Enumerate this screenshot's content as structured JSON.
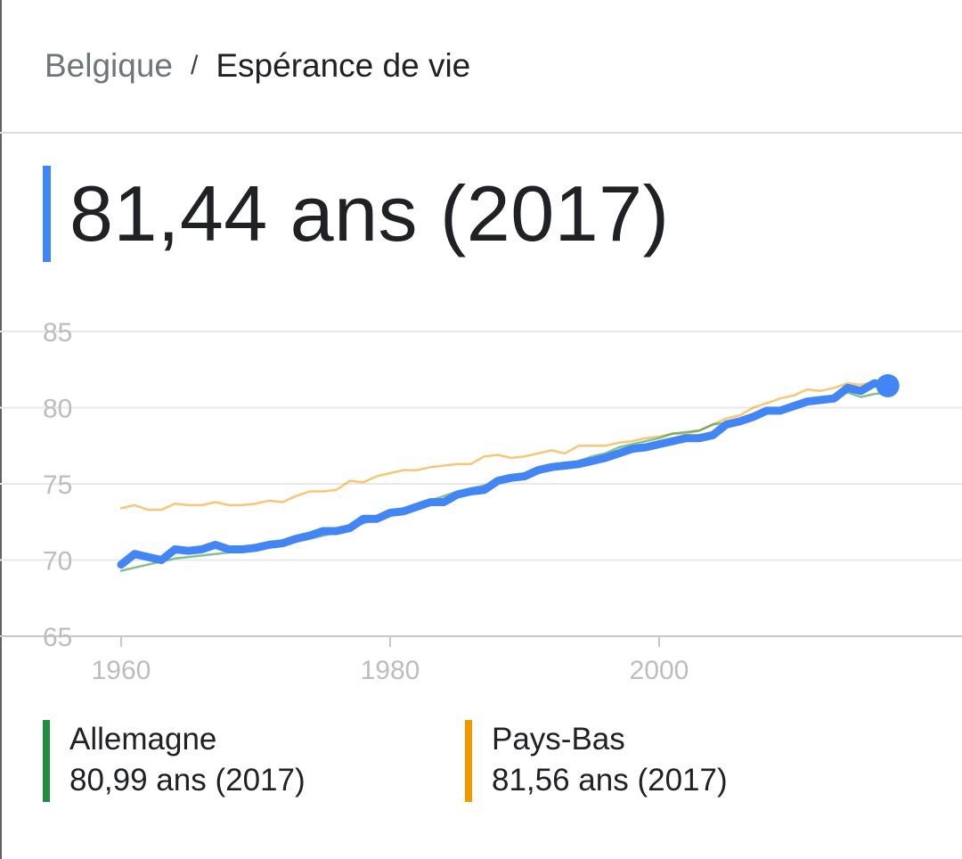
{
  "breadcrumb": {
    "country": "Belgique",
    "separator": "/",
    "indicator": "Espérance de vie"
  },
  "headline": {
    "value": "81,44 ans (2017)"
  },
  "legend": [
    {
      "name": "Allemagne",
      "value": "80,99 ans (2017)",
      "color": "#1e8e3e"
    },
    {
      "name": "Pays-Bas",
      "value": "81,56 ans (2017)",
      "color": "#f29900"
    }
  ],
  "chart_data": {
    "type": "line",
    "title": "",
    "xlabel": "",
    "ylabel": "",
    "xlim": [
      1960,
      2017
    ],
    "ylim": [
      65,
      85
    ],
    "x_ticks": [
      1960,
      1980,
      2000
    ],
    "y_ticks": [
      65,
      70,
      75,
      80,
      85
    ],
    "grid": true,
    "x": [
      1960,
      1961,
      1962,
      1963,
      1964,
      1965,
      1966,
      1967,
      1968,
      1969,
      1970,
      1971,
      1972,
      1973,
      1974,
      1975,
      1976,
      1977,
      1978,
      1979,
      1980,
      1981,
      1982,
      1983,
      1984,
      1985,
      1986,
      1987,
      1988,
      1989,
      1990,
      1991,
      1992,
      1993,
      1994,
      1995,
      1996,
      1997,
      1998,
      1999,
      2000,
      2001,
      2002,
      2003,
      2004,
      2005,
      2006,
      2007,
      2008,
      2009,
      2010,
      2011,
      2012,
      2013,
      2014,
      2015,
      2016,
      2017
    ],
    "series": [
      {
        "name": "Belgique",
        "color": "#4285f4",
        "values": [
          69.7,
          70.4,
          70.2,
          70.0,
          70.7,
          70.6,
          70.7,
          71.0,
          70.7,
          70.7,
          70.8,
          71.0,
          71.1,
          71.4,
          71.6,
          71.9,
          71.9,
          72.1,
          72.7,
          72.7,
          73.1,
          73.2,
          73.5,
          73.8,
          73.8,
          74.3,
          74.5,
          74.6,
          75.2,
          75.4,
          75.5,
          75.9,
          76.1,
          76.2,
          76.3,
          76.5,
          76.7,
          77.0,
          77.3,
          77.4,
          77.6,
          77.8,
          78.0,
          78.0,
          78.2,
          78.9,
          79.1,
          79.4,
          79.8,
          79.8,
          80.1,
          80.4,
          80.5,
          80.6,
          81.3,
          81.1,
          81.6,
          81.44
        ]
      },
      {
        "name": "Allemagne",
        "color": "#1e8e3e",
        "values": [
          69.3,
          69.5,
          69.7,
          69.9,
          70.1,
          70.2,
          70.3,
          70.4,
          70.5,
          70.6,
          70.7,
          70.8,
          71.0,
          71.2,
          71.4,
          71.6,
          71.8,
          72.1,
          72.4,
          72.7,
          73.0,
          73.3,
          73.6,
          73.9,
          74.2,
          74.5,
          74.7,
          74.9,
          75.1,
          75.3,
          75.4,
          75.8,
          75.9,
          76.2,
          76.5,
          76.8,
          77.0,
          77.4,
          77.6,
          77.8,
          78.0,
          78.3,
          78.4,
          78.5,
          78.9,
          79.0,
          79.3,
          79.6,
          79.9,
          80.0,
          80.2,
          80.5,
          80.6,
          80.6,
          81.0,
          80.7,
          80.9,
          80.99
        ]
      },
      {
        "name": "Pays-Bas",
        "color": "#f29900",
        "values": [
          73.4,
          73.6,
          73.3,
          73.3,
          73.7,
          73.6,
          73.6,
          73.8,
          73.6,
          73.6,
          73.7,
          73.9,
          73.8,
          74.2,
          74.5,
          74.5,
          74.6,
          75.2,
          75.1,
          75.5,
          75.7,
          75.9,
          75.9,
          76.1,
          76.2,
          76.3,
          76.3,
          76.8,
          76.9,
          76.7,
          76.8,
          77.0,
          77.2,
          77.0,
          77.5,
          77.5,
          77.5,
          77.7,
          77.8,
          78.0,
          78.1,
          78.3,
          78.3,
          78.5,
          78.9,
          79.3,
          79.5,
          80.0,
          80.3,
          80.6,
          80.8,
          81.2,
          81.1,
          81.3,
          81.6,
          81.5,
          81.7,
          81.56
        ]
      }
    ]
  }
}
